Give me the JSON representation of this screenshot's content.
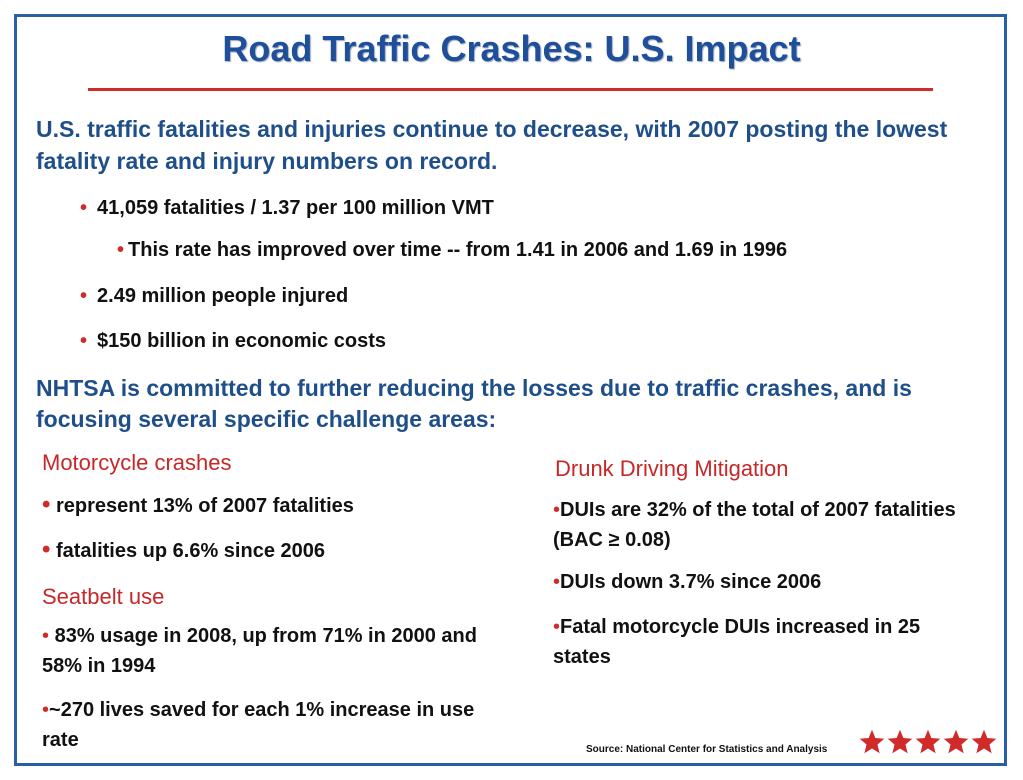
{
  "slide": {
    "title": "Road Traffic Crashes: U.S. Impact",
    "intro": "U.S. traffic fatalities and injuries continue to decrease, with 2007 posting the lowest fatality rate and injury numbers on record.",
    "bullets": [
      {
        "bullet": "•",
        "text": "41,059 fatalities  /  1.37 per 100 million VMT"
      },
      {
        "bullet": "•",
        "text": "This rate has improved over time -- from 1.41 in 2006 and 1.69 in 1996"
      },
      {
        "bullet": "•",
        "text": "2.49 million people injured"
      },
      {
        "bullet": "•",
        "text": "$150 billion in economic costs"
      }
    ],
    "commitment": "NHTSA is committed to further reducing the losses due to traffic crashes, and is focusing several specific challenge areas:",
    "motorcycle": {
      "heading": "Motorcycle crashes",
      "items": [
        {
          "bullet": "•",
          "text": " represent 13% of 2007 fatalities"
        },
        {
          "bullet": "•",
          "text": " fatalities up 6.6% since 2006"
        }
      ]
    },
    "seatbelt": {
      "heading": "Seatbelt use",
      "items": [
        {
          "bullet": "•",
          "text": " 83% usage in 2008, up from 71% in 2000 and 58% in 1994"
        },
        {
          "bullet": "•",
          "text": "~270 lives saved for each 1% increase in use rate"
        }
      ]
    },
    "drunk": {
      "heading": "Drunk Driving Mitigation",
      "items": [
        {
          "bullet": "•",
          "text": "DUIs are 32% of the total of 2007 fatalities (BAC ≥ 0.08)"
        },
        {
          "bullet": "•",
          "text": "DUIs down 3.7% since 2006"
        },
        {
          "bullet": "•",
          "text": "Fatal motorcycle DUIs increased in 25 states"
        }
      ]
    },
    "source": "Source: National Center for Statistics and Analysis",
    "logo_icon": "five-red-stars-logo",
    "colors": {
      "title_blue": "#1f4f9a",
      "text_blue": "#1f4f8a",
      "accent_red": "#d02a2a",
      "heading_red": "#c62828",
      "frame_blue": "#2a5fa8"
    }
  }
}
